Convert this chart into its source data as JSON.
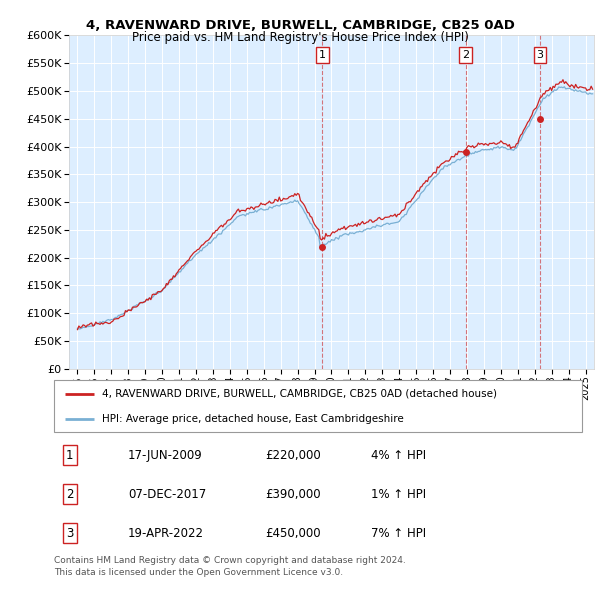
{
  "title": "4, RAVENWARD DRIVE, BURWELL, CAMBRIDGE, CB25 0AD",
  "subtitle": "Price paid vs. HM Land Registry's House Price Index (HPI)",
  "legend_line1": "4, RAVENWARD DRIVE, BURWELL, CAMBRIDGE, CB25 0AD (detached house)",
  "legend_line2": "HPI: Average price, detached house, East Cambridgeshire",
  "footer1": "Contains HM Land Registry data © Crown copyright and database right 2024.",
  "footer2": "This data is licensed under the Open Government Licence v3.0.",
  "transactions": [
    {
      "num": 1,
      "date": "17-JUN-2009",
      "price": "£220,000",
      "pct": "4% ↑ HPI",
      "year": 2009.46
    },
    {
      "num": 2,
      "date": "07-DEC-2017",
      "price": "£390,000",
      "pct": "1% ↑ HPI",
      "year": 2017.93
    },
    {
      "num": 3,
      "date": "19-APR-2022",
      "price": "£450,000",
      "pct": "7% ↑ HPI",
      "year": 2022.3
    }
  ],
  "transaction_prices": [
    220000,
    390000,
    450000
  ],
  "hpi_color": "#7ab0d4",
  "price_color": "#cc2222",
  "bg_color": "#ddeeff",
  "plot_bg": "#ffffff",
  "ylim": [
    0,
    600000
  ],
  "xlim_start": 1994.5,
  "xlim_end": 2025.5
}
